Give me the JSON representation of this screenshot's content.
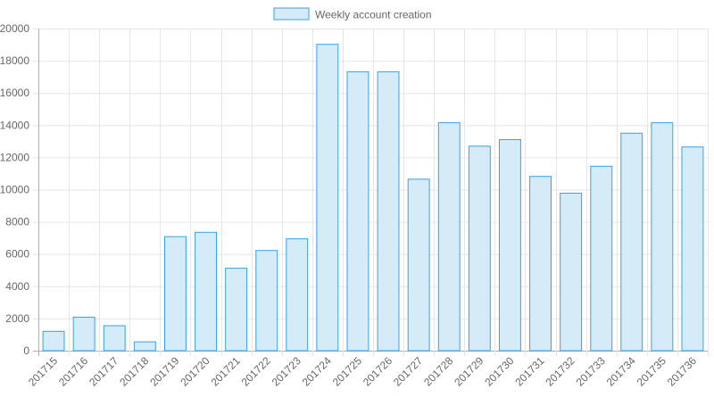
{
  "chart_data": {
    "type": "bar",
    "legend": {
      "label": "Weekly account creation",
      "position": "top"
    },
    "categories": [
      "201715",
      "201716",
      "201717",
      "201718",
      "201719",
      "201720",
      "201721",
      "201722",
      "201723",
      "201724",
      "201725",
      "201726",
      "201727",
      "201728",
      "201729",
      "201730",
      "201731",
      "201732",
      "201733",
      "201734",
      "201735",
      "201736"
    ],
    "series": [
      {
        "name": "Weekly account creation",
        "values": [
          1200,
          2080,
          1550,
          550,
          7080,
          7350,
          5120,
          6220,
          6950,
          19020,
          17320,
          17320,
          10650,
          14150,
          12700,
          13100,
          10820,
          9780,
          11450,
          13500,
          14150,
          12650
        ]
      }
    ],
    "ylim": [
      0,
      20000
    ],
    "yticks": [
      0,
      2000,
      4000,
      6000,
      8000,
      10000,
      12000,
      14000,
      16000,
      18000,
      20000
    ],
    "grid": true,
    "colors": {
      "bar_fill": "#d6ebf8",
      "bar_stroke": "#36a2eb",
      "grid": "#e6e6e6",
      "axis": "#b0b0b0",
      "text": "#666666"
    }
  }
}
